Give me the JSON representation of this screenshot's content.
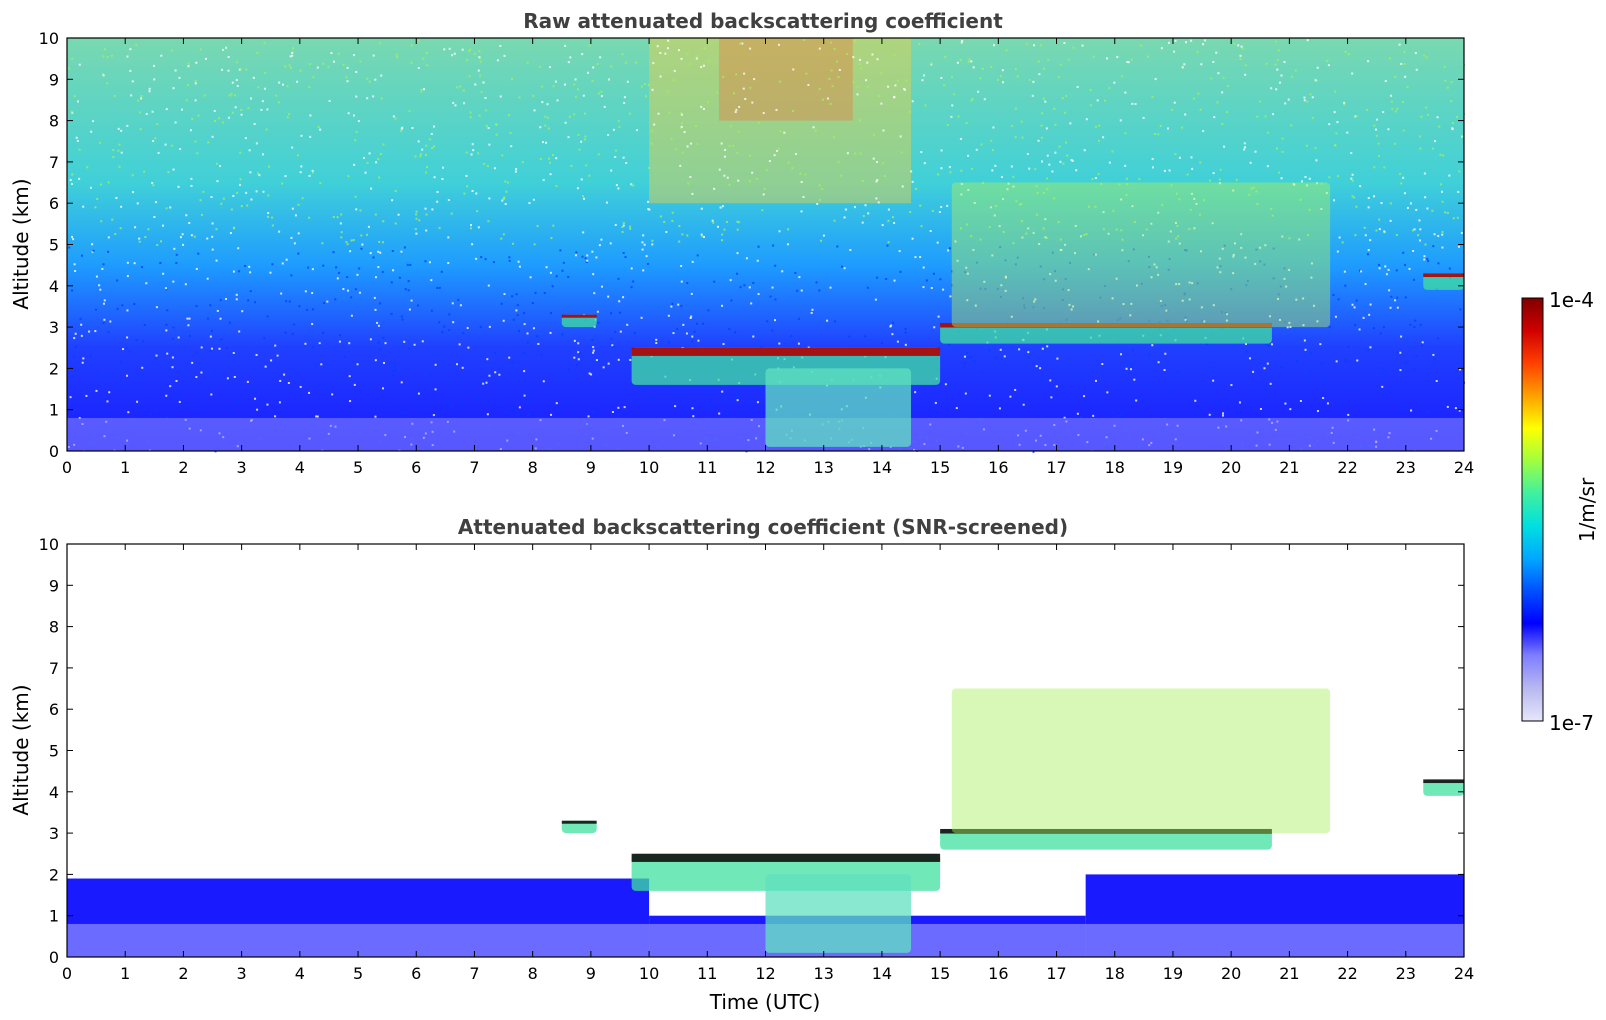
{
  "chart_data": [
    {
      "type": "heatmap",
      "title": "Raw attenuated backscattering coefficient",
      "xlabel": "",
      "ylabel": "Altitude (km)",
      "xlim": [
        0,
        24
      ],
      "ylim": [
        0,
        10
      ],
      "xticks": [
        "0",
        "1",
        "2",
        "3",
        "4",
        "5",
        "6",
        "7",
        "8",
        "9",
        "10",
        "11",
        "12",
        "13",
        "14",
        "15",
        "16",
        "17",
        "18",
        "19",
        "20",
        "21",
        "22",
        "23",
        "24"
      ],
      "yticks": [
        "0",
        "1",
        "2",
        "3",
        "4",
        "5",
        "6",
        "7",
        "8",
        "9",
        "10"
      ],
      "features": [
        {
          "kind": "noise_gradient",
          "x": [
            0,
            24
          ],
          "y": [
            0,
            10
          ]
        },
        {
          "kind": "cloud_layer",
          "x": [
            8.5,
            9.1
          ],
          "y": [
            3.0,
            3.3
          ]
        },
        {
          "kind": "cloud_layer",
          "x": [
            9.7,
            15.0
          ],
          "y": [
            1.6,
            2.5
          ]
        },
        {
          "kind": "cloud_layer",
          "x": [
            15.0,
            20.7
          ],
          "y": [
            2.6,
            3.1
          ]
        },
        {
          "kind": "cloud_layer",
          "x": [
            23.3,
            24.0
          ],
          "y": [
            3.9,
            4.3
          ]
        },
        {
          "kind": "aerosol_layer",
          "x": [
            12.0,
            14.5
          ],
          "y": [
            0.1,
            2.0
          ]
        },
        {
          "kind": "cirrus",
          "x": [
            15.2,
            21.7
          ],
          "y": [
            3.0,
            6.5
          ]
        },
        {
          "kind": "boundary_layer",
          "x": [
            0,
            24
          ],
          "y": [
            0,
            2.0
          ]
        }
      ]
    },
    {
      "type": "heatmap",
      "title": "Attenuated backscattering coefficient (SNR-screened)",
      "xlabel": "Time (UTC)",
      "ylabel": "Altitude (km)",
      "xlim": [
        0,
        24
      ],
      "ylim": [
        0,
        10
      ],
      "xticks": [
        "0",
        "1",
        "2",
        "3",
        "4",
        "5",
        "6",
        "7",
        "8",
        "9",
        "10",
        "11",
        "12",
        "13",
        "14",
        "15",
        "16",
        "17",
        "18",
        "19",
        "20",
        "21",
        "22",
        "23",
        "24"
      ],
      "yticks": [
        "0",
        "1",
        "2",
        "3",
        "4",
        "5",
        "6",
        "7",
        "8",
        "9",
        "10"
      ]
    }
  ],
  "colorbar": {
    "label": "1/m/sr",
    "max_label": "1e-4",
    "min_label": "1e-7",
    "colormap": [
      "#e6e6fa",
      "#b8b8f0",
      "#7f7fff",
      "#0000ff",
      "#0050ff",
      "#00a8ff",
      "#00e0e0",
      "#40f0a0",
      "#a0ff40",
      "#ffff00",
      "#ffa000",
      "#ff4000",
      "#d00000",
      "#800000"
    ]
  }
}
